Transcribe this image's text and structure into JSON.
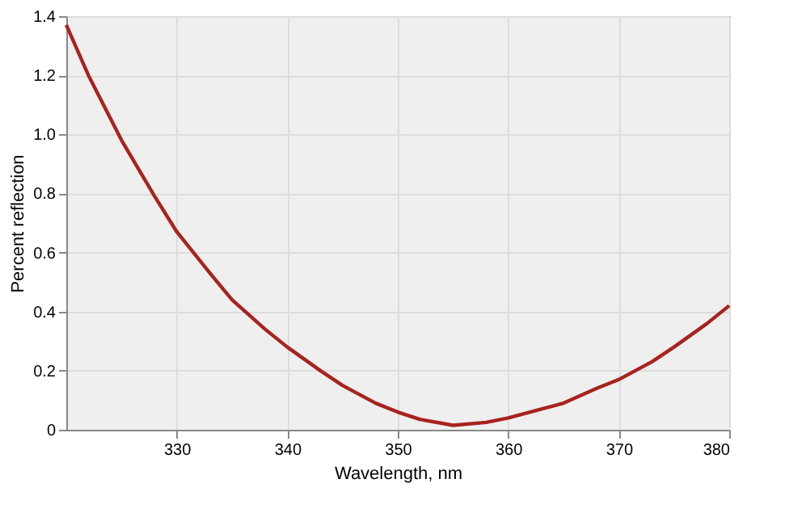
{
  "chart_data": {
    "type": "line",
    "xlabel": "Wavelength, nm",
    "ylabel": "Percent reflection",
    "series": [
      {
        "color": "#a8231f",
        "x": [
          320,
          322,
          325,
          328,
          330,
          333,
          335,
          338,
          340,
          343,
          345,
          348,
          350,
          352,
          355,
          358,
          360,
          363,
          365,
          368,
          370,
          373,
          375,
          378,
          380
        ],
        "values": [
          1.37,
          1.2,
          0.98,
          0.79,
          0.67,
          0.53,
          0.44,
          0.34,
          0.28,
          0.2,
          0.15,
          0.09,
          0.06,
          0.035,
          0.015,
          0.025,
          0.04,
          0.07,
          0.09,
          0.14,
          0.17,
          0.23,
          0.28,
          0.36,
          0.42
        ]
      }
    ],
    "xlim": [
      320,
      380
    ],
    "xticks": [
      330,
      340,
      350,
      360,
      370,
      380
    ],
    "ylim": [
      0,
      1.4
    ],
    "yticks": [
      0,
      0.2,
      0.4,
      0.6,
      0.8,
      {
        "value": 1,
        "label": "1.0"
      },
      1.2,
      1.4
    ],
    "grid": true,
    "marker": "none",
    "line_style": "solid"
  }
}
